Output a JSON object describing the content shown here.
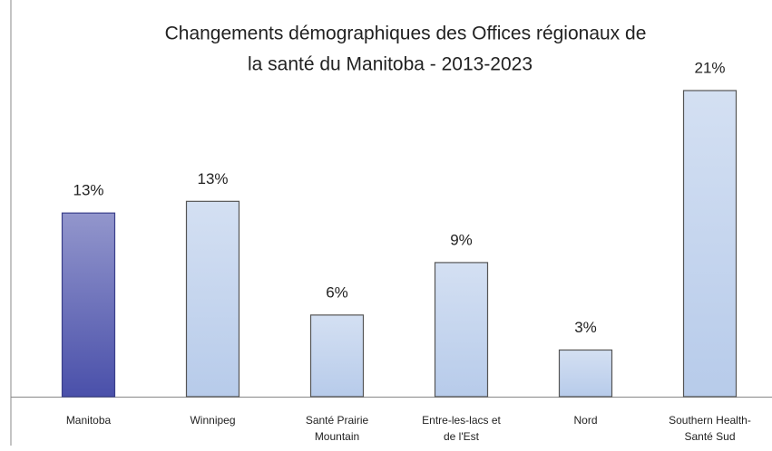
{
  "chart_data": {
    "type": "bar",
    "title": [
      "Changements démographiques des Offices régionaux de",
      "la santé du Manitoba -  2013-2023"
    ],
    "categories": [
      [
        "Manitoba"
      ],
      [
        "Winnipeg"
      ],
      [
        "Santé Prairie",
        "Mountain"
      ],
      [
        "Entre-les-lacs et",
        "de l'Est"
      ],
      [
        "Nord"
      ],
      [
        "Southern Health-",
        "Santé Sud"
      ]
    ],
    "values": [
      12.6,
      13.4,
      5.6,
      9.2,
      3.2,
      21.0
    ],
    "value_labels": [
      "13%",
      "13%",
      "6%",
      "9%",
      "3%",
      "21%"
    ],
    "colors": [
      "#4a50aa",
      "#b7cbea",
      "#b7cbea",
      "#b7cbea",
      "#b7cbea",
      "#b7cbea"
    ]
  }
}
